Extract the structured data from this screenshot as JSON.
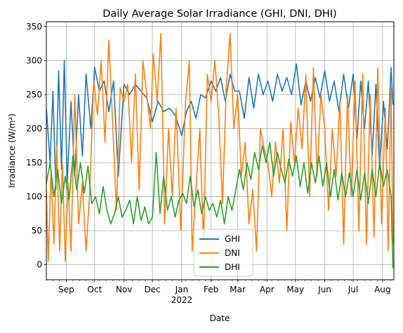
{
  "chart_data": {
    "type": "line",
    "title": "Daily Average Solar Irradiance (GHI, DNI, DHI)",
    "xlabel": "Date",
    "ylabel": "Irradiance (W/m²)",
    "x_range": [
      "2021-08-11",
      "2022-08-13"
    ],
    "ylim": [
      -22,
      357
    ],
    "grid": true,
    "legend_position": "lower-center",
    "x_ticks": [
      {
        "date": "2021-09-01",
        "label": "Sep"
      },
      {
        "date": "2021-10-01",
        "label": "Oct"
      },
      {
        "date": "2021-11-01",
        "label": "Nov"
      },
      {
        "date": "2021-12-01",
        "label": "Dec"
      },
      {
        "date": "2022-01-01",
        "label": "Jan"
      },
      {
        "date": "2022-02-01",
        "label": "Feb"
      },
      {
        "date": "2022-03-01",
        "label": "Mar"
      },
      {
        "date": "2022-04-01",
        "label": "Apr"
      },
      {
        "date": "2022-05-01",
        "label": "May"
      },
      {
        "date": "2022-06-01",
        "label": "Jun"
      },
      {
        "date": "2022-07-01",
        "label": "Jul"
      },
      {
        "date": "2022-08-01",
        "label": "Aug"
      }
    ],
    "x_year_label": {
      "date": "2022-01-01",
      "label": "2022"
    },
    "y_ticks": [
      0,
      50,
      100,
      150,
      200,
      250,
      300,
      350
    ],
    "series": [
      {
        "name": "GHI",
        "color": "#1f77b4",
        "points": [
          [
            "2021-08-11",
            230
          ],
          [
            "2021-08-15",
            150
          ],
          [
            "2021-08-18",
            255
          ],
          [
            "2021-08-21",
            110
          ],
          [
            "2021-08-24",
            285
          ],
          [
            "2021-08-27",
            140
          ],
          [
            "2021-08-30",
            300
          ],
          [
            "2021-09-02",
            120
          ],
          [
            "2021-09-06",
            240
          ],
          [
            "2021-09-10",
            130
          ],
          [
            "2021-09-14",
            250
          ],
          [
            "2021-09-18",
            160
          ],
          [
            "2021-09-22",
            280
          ],
          [
            "2021-09-27",
            200
          ],
          [
            "2021-10-01",
            290
          ],
          [
            "2021-10-06",
            255
          ],
          [
            "2021-10-11",
            270
          ],
          [
            "2021-10-16",
            225
          ],
          [
            "2021-10-21",
            270
          ],
          [
            "2021-10-26",
            130
          ],
          [
            "2021-11-01",
            265
          ],
          [
            "2021-11-07",
            250
          ],
          [
            "2021-11-13",
            265
          ],
          [
            "2021-11-19",
            255
          ],
          [
            "2021-11-25",
            245
          ],
          [
            "2021-12-01",
            210
          ],
          [
            "2021-12-07",
            240
          ],
          [
            "2021-12-13",
            225
          ],
          [
            "2021-12-19",
            230
          ],
          [
            "2021-12-25",
            220
          ],
          [
            "2022-01-01",
            190
          ],
          [
            "2022-01-06",
            225
          ],
          [
            "2022-01-11",
            240
          ],
          [
            "2022-01-16",
            215
          ],
          [
            "2022-01-21",
            250
          ],
          [
            "2022-01-26",
            245
          ],
          [
            "2022-02-01",
            270
          ],
          [
            "2022-02-06",
            255
          ],
          [
            "2022-02-11",
            275
          ],
          [
            "2022-02-16",
            240
          ],
          [
            "2022-02-21",
            280
          ],
          [
            "2022-02-26",
            255
          ],
          [
            "2022-03-03",
            255
          ],
          [
            "2022-03-08",
            215
          ],
          [
            "2022-03-13",
            275
          ],
          [
            "2022-03-18",
            230
          ],
          [
            "2022-03-23",
            280
          ],
          [
            "2022-03-28",
            250
          ],
          [
            "2022-04-02",
            270
          ],
          [
            "2022-04-07",
            240
          ],
          [
            "2022-04-12",
            280
          ],
          [
            "2022-04-17",
            255
          ],
          [
            "2022-04-22",
            275
          ],
          [
            "2022-04-27",
            250
          ],
          [
            "2022-05-02",
            295
          ],
          [
            "2022-05-07",
            235
          ],
          [
            "2022-05-12",
            270
          ],
          [
            "2022-05-17",
            240
          ],
          [
            "2022-05-22",
            275
          ],
          [
            "2022-05-27",
            245
          ],
          [
            "2022-06-01",
            285
          ],
          [
            "2022-06-06",
            240
          ],
          [
            "2022-06-11",
            270
          ],
          [
            "2022-06-16",
            225
          ],
          [
            "2022-06-21",
            280
          ],
          [
            "2022-06-26",
            230
          ],
          [
            "2022-07-01",
            280
          ],
          [
            "2022-07-05",
            185
          ],
          [
            "2022-07-09",
            270
          ],
          [
            "2022-07-13",
            200
          ],
          [
            "2022-07-17",
            270
          ],
          [
            "2022-07-21",
            160
          ],
          [
            "2022-07-25",
            265
          ],
          [
            "2022-07-29",
            140
          ],
          [
            "2022-08-02",
            240
          ],
          [
            "2022-08-06",
            170
          ],
          [
            "2022-08-10",
            290
          ],
          [
            "2022-08-12",
            235
          ]
        ]
      },
      {
        "name": "DNI",
        "color": "#ff7f0e",
        "points": [
          [
            "2021-08-11",
            110
          ],
          [
            "2021-08-13",
            5
          ],
          [
            "2021-08-16",
            140
          ],
          [
            "2021-08-19",
            30
          ],
          [
            "2021-08-22",
            175
          ],
          [
            "2021-08-25",
            20
          ],
          [
            "2021-08-28",
            150
          ],
          [
            "2021-08-31",
            5
          ],
          [
            "2021-09-03",
            120
          ],
          [
            "2021-09-06",
            20
          ],
          [
            "2021-09-10",
            250
          ],
          [
            "2021-09-14",
            60
          ],
          [
            "2021-09-18",
            120
          ],
          [
            "2021-09-22",
            20
          ],
          [
            "2021-09-26",
            110
          ],
          [
            "2021-09-30",
            270
          ],
          [
            "2021-10-04",
            220
          ],
          [
            "2021-10-08",
            300
          ],
          [
            "2021-10-12",
            180
          ],
          [
            "2021-10-16",
            330
          ],
          [
            "2021-10-20",
            210
          ],
          [
            "2021-10-24",
            80
          ],
          [
            "2021-10-28",
            260
          ],
          [
            "2021-11-01",
            240
          ],
          [
            "2021-11-05",
            265
          ],
          [
            "2021-11-09",
            150
          ],
          [
            "2021-11-13",
            280
          ],
          [
            "2021-11-17",
            110
          ],
          [
            "2021-11-21",
            300
          ],
          [
            "2021-11-25",
            250
          ],
          [
            "2021-11-29",
            200
          ],
          [
            "2021-12-02",
            310
          ],
          [
            "2021-12-06",
            240
          ],
          [
            "2021-12-10",
            340
          ],
          [
            "2021-12-14",
            60
          ],
          [
            "2021-12-18",
            200
          ],
          [
            "2021-12-22",
            100
          ],
          [
            "2021-12-26",
            230
          ],
          [
            "2021-12-31",
            50
          ],
          [
            "2022-01-05",
            240
          ],
          [
            "2022-01-09",
            300
          ],
          [
            "2022-01-12",
            20
          ],
          [
            "2022-01-16",
            110
          ],
          [
            "2022-01-20",
            200
          ],
          [
            "2022-01-24",
            30
          ],
          [
            "2022-01-28",
            280
          ],
          [
            "2022-02-01",
            240
          ],
          [
            "2022-02-05",
            300
          ],
          [
            "2022-02-09",
            220
          ],
          [
            "2022-02-13",
            90
          ],
          [
            "2022-02-17",
            260
          ],
          [
            "2022-02-21",
            340
          ],
          [
            "2022-02-25",
            200
          ],
          [
            "2022-03-01",
            250
          ],
          [
            "2022-03-05",
            130
          ],
          [
            "2022-03-09",
            180
          ],
          [
            "2022-03-13",
            60
          ],
          [
            "2022-03-17",
            110
          ],
          [
            "2022-03-21",
            20
          ],
          [
            "2022-03-25",
            200
          ],
          [
            "2022-03-29",
            170
          ],
          [
            "2022-04-02",
            150
          ],
          [
            "2022-04-06",
            100
          ],
          [
            "2022-04-10",
            180
          ],
          [
            "2022-04-14",
            120
          ],
          [
            "2022-04-18",
            200
          ],
          [
            "2022-04-22",
            50
          ],
          [
            "2022-04-26",
            210
          ],
          [
            "2022-04-30",
            150
          ],
          [
            "2022-05-04",
            230
          ],
          [
            "2022-05-08",
            170
          ],
          [
            "2022-05-12",
            280
          ],
          [
            "2022-05-16",
            100
          ],
          [
            "2022-05-20",
            290
          ],
          [
            "2022-05-24",
            130
          ],
          [
            "2022-05-28",
            250
          ],
          [
            "2022-06-01",
            200
          ],
          [
            "2022-06-05",
            80
          ],
          [
            "2022-06-09",
            200
          ],
          [
            "2022-06-13",
            130
          ],
          [
            "2022-06-17",
            240
          ],
          [
            "2022-06-21",
            30
          ],
          [
            "2022-06-25",
            250
          ],
          [
            "2022-06-29",
            100
          ],
          [
            "2022-07-03",
            270
          ],
          [
            "2022-07-07",
            50
          ],
          [
            "2022-07-11",
            280
          ],
          [
            "2022-07-15",
            30
          ],
          [
            "2022-07-19",
            250
          ],
          [
            "2022-07-23",
            40
          ],
          [
            "2022-07-27",
            290
          ],
          [
            "2022-07-31",
            60
          ],
          [
            "2022-08-04",
            230
          ],
          [
            "2022-08-07",
            20
          ],
          [
            "2022-08-10",
            260
          ],
          [
            "2022-08-12",
            30
          ]
        ]
      },
      {
        "name": "DHI",
        "color": "#2ca02c",
        "points": [
          [
            "2021-08-11",
            120
          ],
          [
            "2021-08-15",
            150
          ],
          [
            "2021-08-19",
            100
          ],
          [
            "2021-08-23",
            140
          ],
          [
            "2021-08-27",
            90
          ],
          [
            "2021-08-31",
            130
          ],
          [
            "2021-09-04",
            95
          ],
          [
            "2021-09-08",
            160
          ],
          [
            "2021-09-12",
            110
          ],
          [
            "2021-09-16",
            150
          ],
          [
            "2021-09-20",
            105
          ],
          [
            "2021-09-24",
            145
          ],
          [
            "2021-09-28",
            90
          ],
          [
            "2021-10-02",
            100
          ],
          [
            "2021-10-06",
            75
          ],
          [
            "2021-10-10",
            115
          ],
          [
            "2021-10-14",
            80
          ],
          [
            "2021-10-18",
            60
          ],
          [
            "2021-10-22",
            75
          ],
          [
            "2021-10-26",
            100
          ],
          [
            "2021-10-30",
            70
          ],
          [
            "2021-11-03",
            80
          ],
          [
            "2021-11-07",
            95
          ],
          [
            "2021-11-11",
            60
          ],
          [
            "2021-11-15",
            100
          ],
          [
            "2021-11-19",
            65
          ],
          [
            "2021-11-23",
            85
          ],
          [
            "2021-11-27",
            60
          ],
          [
            "2021-12-01",
            70
          ],
          [
            "2021-12-05",
            165
          ],
          [
            "2021-12-09",
            75
          ],
          [
            "2021-12-13",
            130
          ],
          [
            "2021-12-17",
            80
          ],
          [
            "2021-12-21",
            100
          ],
          [
            "2021-12-25",
            70
          ],
          [
            "2021-12-29",
            95
          ],
          [
            "2022-01-02",
            105
          ],
          [
            "2022-01-06",
            90
          ],
          [
            "2022-01-10",
            130
          ],
          [
            "2022-01-14",
            85
          ],
          [
            "2022-01-18",
            110
          ],
          [
            "2022-01-22",
            75
          ],
          [
            "2022-01-26",
            100
          ],
          [
            "2022-01-30",
            80
          ],
          [
            "2022-02-03",
            90
          ],
          [
            "2022-02-07",
            70
          ],
          [
            "2022-02-11",
            95
          ],
          [
            "2022-02-15",
            60
          ],
          [
            "2022-02-19",
            100
          ],
          [
            "2022-02-23",
            80
          ],
          [
            "2022-02-27",
            110
          ],
          [
            "2022-03-03",
            140
          ],
          [
            "2022-03-07",
            110
          ],
          [
            "2022-03-11",
            150
          ],
          [
            "2022-03-15",
            125
          ],
          [
            "2022-03-19",
            165
          ],
          [
            "2022-03-23",
            140
          ],
          [
            "2022-03-27",
            175
          ],
          [
            "2022-03-31",
            150
          ],
          [
            "2022-04-04",
            180
          ],
          [
            "2022-04-08",
            130
          ],
          [
            "2022-04-12",
            165
          ],
          [
            "2022-04-16",
            140
          ],
          [
            "2022-04-20",
            120
          ],
          [
            "2022-04-24",
            155
          ],
          [
            "2022-04-28",
            130
          ],
          [
            "2022-05-02",
            160
          ],
          [
            "2022-05-06",
            115
          ],
          [
            "2022-05-10",
            150
          ],
          [
            "2022-05-14",
            105
          ],
          [
            "2022-05-18",
            150
          ],
          [
            "2022-05-22",
            120
          ],
          [
            "2022-05-26",
            160
          ],
          [
            "2022-05-30",
            115
          ],
          [
            "2022-06-03",
            150
          ],
          [
            "2022-06-07",
            100
          ],
          [
            "2022-06-11",
            140
          ],
          [
            "2022-06-15",
            95
          ],
          [
            "2022-06-19",
            135
          ],
          [
            "2022-06-23",
            100
          ],
          [
            "2022-06-27",
            135
          ],
          [
            "2022-07-01",
            100
          ],
          [
            "2022-07-05",
            140
          ],
          [
            "2022-07-09",
            95
          ],
          [
            "2022-07-13",
            135
          ],
          [
            "2022-07-17",
            90
          ],
          [
            "2022-07-21",
            140
          ],
          [
            "2022-07-25",
            100
          ],
          [
            "2022-07-29",
            150
          ],
          [
            "2022-08-02",
            115
          ],
          [
            "2022-08-06",
            140
          ],
          [
            "2022-08-10",
            100
          ],
          [
            "2022-08-12",
            -5
          ]
        ]
      }
    ]
  }
}
